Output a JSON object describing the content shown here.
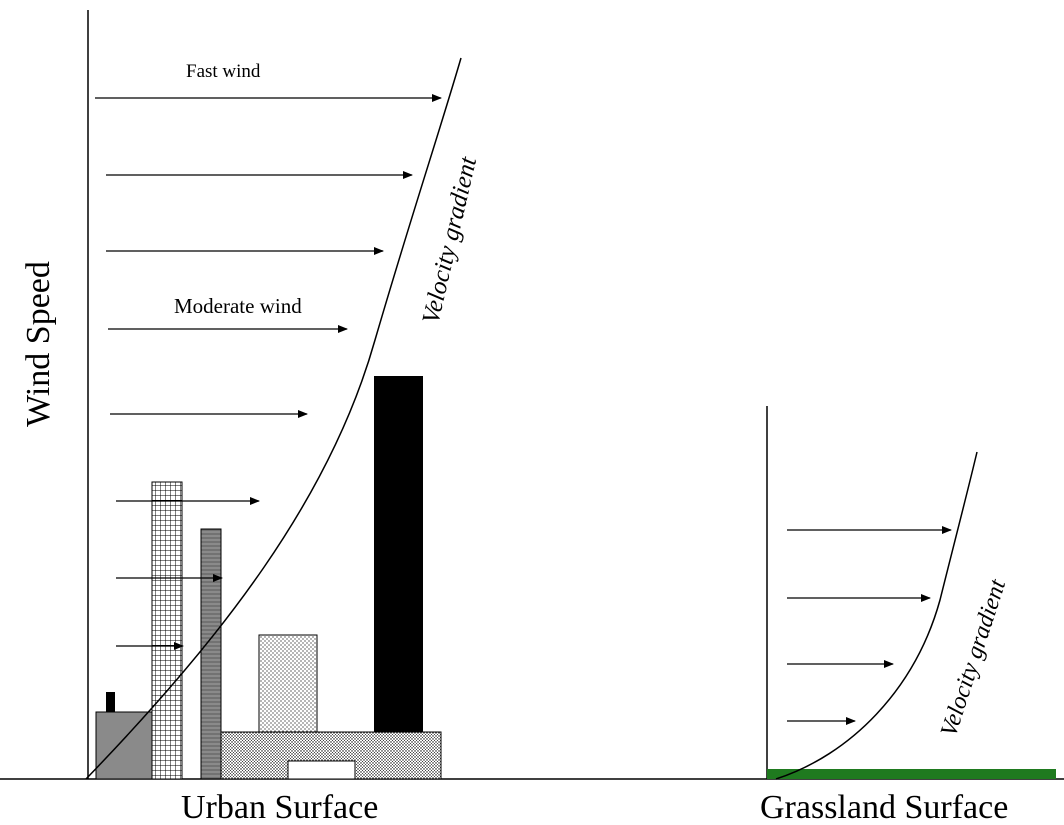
{
  "labels": {
    "y_axis": "Wind Speed",
    "fast_wind": "Fast wind",
    "moderate_wind": "Moderate wind",
    "urban_gradient": "Velocity gradient",
    "grass_gradient": "Velocity gradient",
    "urban_surface": "Urban Surface",
    "grassland_surface": "Grassland Surface"
  },
  "colors": {
    "grass": "#1f7a1f",
    "tall_building": "#000000",
    "gray_building": "#8a8a8a"
  }
}
